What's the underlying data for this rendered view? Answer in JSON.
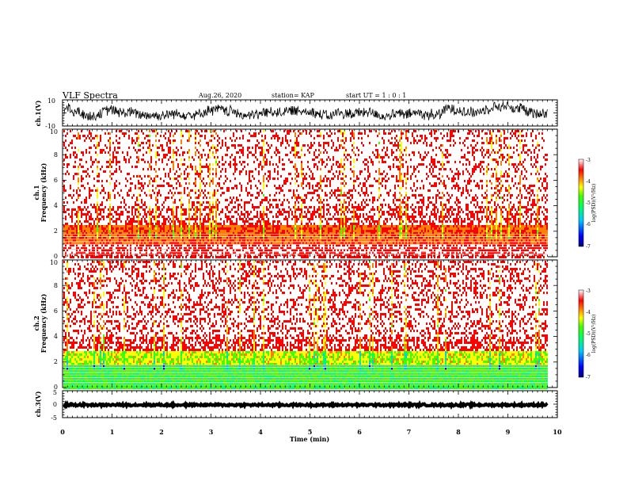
{
  "header": {
    "title": "VLF Spectra",
    "date": "Aug.26, 2020",
    "station": "station= KAP",
    "start": "start UT =  1 : 0  : 1"
  },
  "colors": {
    "spectrogram_scale": [
      "#000080",
      "#0000ff",
      "#00c8ff",
      "#00ff60",
      "#40ff00",
      "#ffff00",
      "#ff8000",
      "#ff0000",
      "#ffffff"
    ],
    "waveform": "#000000"
  },
  "chart_data": [
    {
      "type": "line",
      "panel": "ch1-waveform",
      "ylabel": "ch.1(V)",
      "ylim": [
        -10,
        10
      ],
      "yticks": [
        "10",
        "-10"
      ],
      "description_series": "dense noisy waveform mostly between about -6 and 9 V",
      "series": [
        {
          "values_range": [
            -6,
            9
          ]
        }
      ]
    },
    {
      "type": "heatmap",
      "panel": "ch1-spectrogram",
      "ylabel": "ch.1\nFrequency (kHz)",
      "ylim": [
        0,
        10
      ],
      "yticks": [
        "0",
        "2",
        "4",
        "6",
        "8",
        "10"
      ],
      "xlim": [
        0,
        9.83
      ],
      "colorbar": {
        "label": "log(PSD)(V²/Hz)",
        "range": [
          -7,
          -3
        ],
        "ticks": [
          "-3",
          "-4",
          "-5",
          "-6",
          "-7"
        ]
      },
      "bands": [
        {
          "from_khz": 0,
          "to_khz": 1.0,
          "level": "white/red lines"
        },
        {
          "from_khz": 1.0,
          "to_khz": 2.5,
          "level": -3.8
        },
        {
          "from_khz": 2.5,
          "to_khz": 10,
          "level": -3.2
        }
      ]
    },
    {
      "type": "heatmap",
      "panel": "ch2-spectrogram",
      "ylabel": "ch.2\nFrequency (kHz)",
      "ylim": [
        0,
        10
      ],
      "yticks": [
        "0",
        "2",
        "4",
        "6",
        "8",
        "10"
      ],
      "xlim": [
        0,
        9.83
      ],
      "colorbar": {
        "label": "log(PSD)(V²/Hz)",
        "range": [
          -7,
          -3
        ],
        "ticks": [
          "-3",
          "-4",
          "-5",
          "-6",
          "-7"
        ]
      },
      "bands": [
        {
          "from_khz": 0,
          "to_khz": 1.8,
          "level": -5.2
        },
        {
          "from_khz": 1.8,
          "to_khz": 3.0,
          "level": -4.6
        },
        {
          "from_khz": 3.0,
          "to_khz": 10,
          "level": -3.3
        }
      ]
    },
    {
      "type": "line",
      "panel": "ch3-waveform",
      "ylabel": "ch.3(V)",
      "ylim": [
        -5,
        5
      ],
      "yticks": [
        "5",
        "0",
        "-5"
      ],
      "series": [
        {
          "values_range": [
            -0.7,
            0.1
          ]
        }
      ]
    }
  ],
  "xaxis": {
    "label": "Time (min)",
    "ticks": [
      "0",
      "1",
      "2",
      "3",
      "4",
      "5",
      "6",
      "7",
      "8",
      "9",
      "10"
    ]
  }
}
